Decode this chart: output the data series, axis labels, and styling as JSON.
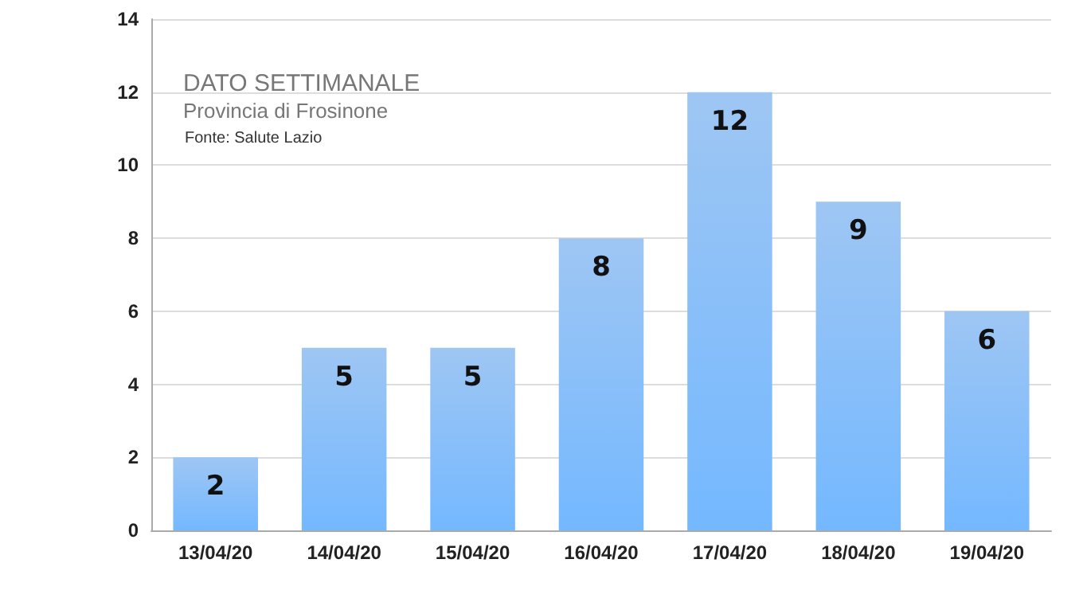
{
  "chart_data": {
    "type": "bar",
    "title": "DATO SETTIMANALE",
    "subtitle": "Provincia di Frosinone",
    "annotations": [
      "Fonte: Salute Lazio"
    ],
    "categories": [
      "13/04/20",
      "14/04/20",
      "15/04/20",
      "16/04/20",
      "17/04/20",
      "18/04/20",
      "19/04/20"
    ],
    "values": [
      2,
      5,
      5,
      8,
      12,
      9,
      6
    ],
    "color": "#6aa8ee",
    "ylim": [
      0,
      14
    ],
    "yticks": [
      0,
      2,
      4,
      6,
      8,
      10,
      12,
      14
    ],
    "grid": "y",
    "data_labels": true
  }
}
